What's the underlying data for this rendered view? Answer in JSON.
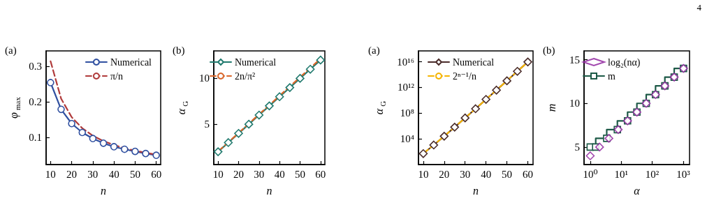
{
  "chart_data": [
    {
      "type": "line",
      "title": "(a)",
      "xlabel": "n",
      "ylabel": "φ$_{max}$",
      "x": [
        10,
        15,
        20,
        25,
        30,
        35,
        40,
        45,
        50,
        55,
        60
      ],
      "xlim": [
        7.9,
        62.1
      ],
      "xticks": [
        10,
        20,
        30,
        40,
        50,
        60
      ],
      "ylim": [
        0.024,
        0.343
      ],
      "yticks": [
        0.1,
        0.2,
        0.3
      ],
      "legend": "top right",
      "series": [
        {
          "name": "Numerical",
          "color": "#3050a0",
          "marker": "circle",
          "line_style": "solid",
          "values": [
            0.254,
            0.179,
            0.139,
            0.114,
            0.097,
            0.084,
            0.074,
            0.067,
            0.061,
            0.055,
            0.05
          ]
        },
        {
          "name": "π/n",
          "color": "#b03a3a",
          "marker": "none",
          "line_style": "dashed",
          "values": [
            0.314,
            0.209,
            0.157,
            0.126,
            0.105,
            0.09,
            0.079,
            0.07,
            0.063,
            0.057,
            0.052
          ]
        }
      ]
    },
    {
      "type": "line",
      "title": "(b)",
      "xlabel": "n",
      "ylabel": "α$_{G}$",
      "x": [
        10,
        15,
        20,
        25,
        30,
        35,
        40,
        45,
        50,
        55,
        60
      ],
      "xlim": [
        7.9,
        62.1
      ],
      "xticks": [
        10,
        20,
        30,
        40,
        50,
        60
      ],
      "ylim": [
        0.6,
        13
      ],
      "yticks": [
        5,
        10
      ],
      "legend": "top left",
      "series": [
        {
          "name": "Numerical",
          "color": "#217a6e",
          "marker": "diamond",
          "line_style": "solid",
          "values": [
            2,
            3,
            4,
            5,
            6,
            7,
            8,
            9,
            10,
            11,
            12
          ]
        },
        {
          "name": "2n/π²",
          "color": "#d9662a",
          "marker": "none",
          "line_style": "dashed",
          "values": [
            2.03,
            3.04,
            4.05,
            5.07,
            6.08,
            7.09,
            8.11,
            9.12,
            10.13,
            11.15,
            12.16
          ]
        }
      ]
    },
    {
      "type": "line",
      "title": "(a)",
      "xlabel": "n",
      "ylabel": "α$_{G}$",
      "log": "y",
      "x": [
        10,
        15,
        20,
        25,
        30,
        35,
        40,
        45,
        50,
        55,
        60
      ],
      "xlim": [
        7.7,
        62.5
      ],
      "xticks": [
        10,
        20,
        30,
        40,
        50,
        60
      ],
      "ylim": [
        1,
        5e+17
      ],
      "yticks": [
        {
          "value": 10000,
          "label": "10⁴"
        },
        {
          "value": 100000000,
          "label": "10⁸"
        },
        {
          "value": 1000000000000,
          "label": "10¹²"
        },
        {
          "value": 10000000000000000,
          "label": "10¹⁶"
        }
      ],
      "legend": "top left",
      "series": [
        {
          "name": "Numerical",
          "color": "#4a2c2a",
          "marker": "diamond",
          "line_style": "solid",
          "values": [
            51,
            1100,
            26000,
            670000,
            18000000.0,
            490000000.0,
            14000000000.0,
            390000000000.0,
            11000000000000.0,
            330000000000000.0,
            9600000000000000.0
          ]
        },
        {
          "name": "2ⁿ⁻¹/n",
          "color": "#f5b400",
          "marker": "none",
          "line_style": "dashed",
          "values": [
            51,
            1100,
            26000,
            670000,
            18000000.0,
            490000000.0,
            14000000000.0,
            390000000000.0,
            11000000000000.0,
            330000000000000.0,
            9600000000000000.0
          ]
        }
      ]
    },
    {
      "type": "scatter",
      "title": "(b)",
      "xlabel": "α",
      "ylabel": "m",
      "log": "x",
      "xlim": [
        0.63,
        1600
      ],
      "xticks": [
        {
          "value": 1,
          "label": "10⁰"
        },
        {
          "value": 10,
          "label": "10¹"
        },
        {
          "value": 100,
          "label": "10²"
        },
        {
          "value": 1000,
          "label": "10³"
        }
      ],
      "ylim": [
        3,
        16
      ],
      "yticks": [
        5,
        10,
        15
      ],
      "legend": "top left",
      "annotations": [
        "4"
      ],
      "series": [
        {
          "name": "log₂(nα)",
          "color": "#8b1a9a",
          "marker": "diamond",
          "x": [
            1,
            2,
            4,
            8,
            16,
            32,
            64,
            128,
            256,
            512,
            1024
          ],
          "values": [
            4,
            5,
            6,
            7,
            8,
            9,
            10,
            11,
            12,
            13,
            14
          ]
        },
        {
          "name": "m",
          "type": "step",
          "color": "#1d5a47",
          "marker": "square",
          "line_style": "solid",
          "x": [
            1,
            1.5,
            3.4,
            7.5,
            16,
            32,
            64,
            128,
            256,
            512,
            1024
          ],
          "values": [
            5,
            5,
            6,
            7,
            8,
            9,
            10,
            11,
            12,
            13,
            14
          ]
        }
      ]
    }
  ]
}
